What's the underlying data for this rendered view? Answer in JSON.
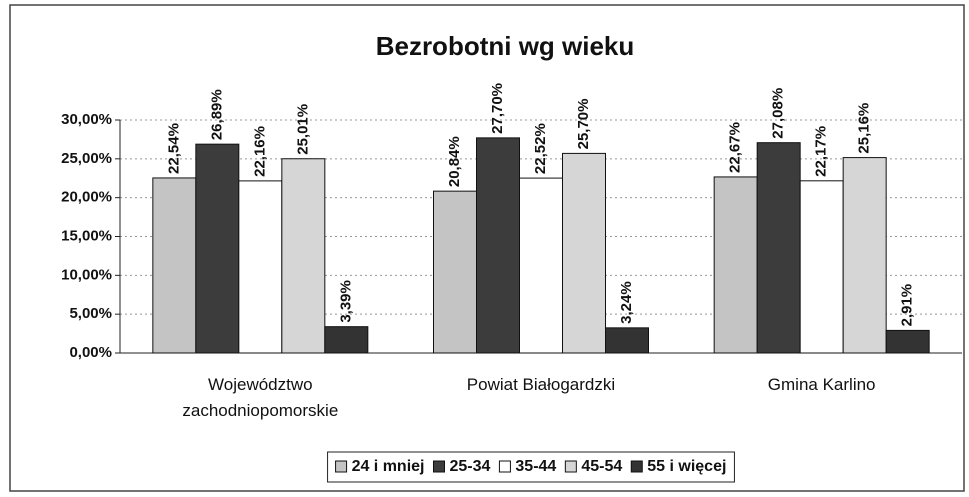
{
  "chart_data": {
    "type": "bar",
    "title": "Bezrobotni wg wieku",
    "categories": [
      "Województwo zachodniopomorskie",
      "Powiat Białogardzki",
      "Gmina Karlino"
    ],
    "series": [
      {
        "name": "24 i mniej",
        "color": "#c4c4c4",
        "values": [
          22.54,
          20.84,
          22.67
        ],
        "value_labels": [
          "22,54%",
          "20,84%",
          "22,67%"
        ]
      },
      {
        "name": "25-34",
        "color": "#3c3c3c",
        "values": [
          26.89,
          27.7,
          27.08
        ],
        "value_labels": [
          "26,89%",
          "27,70%",
          "27,08%"
        ]
      },
      {
        "name": "35-44",
        "color": "#ffffff",
        "values": [
          22.16,
          22.52,
          22.17
        ],
        "value_labels": [
          "22,16%",
          "22,52%",
          "22,17%"
        ]
      },
      {
        "name": "45-54",
        "color": "#d6d6d6",
        "values": [
          25.01,
          25.7,
          25.16
        ],
        "value_labels": [
          "25,01%",
          "25,70%",
          "25,16%"
        ]
      },
      {
        "name": "55 i więcej",
        "color": "#333333",
        "values": [
          3.39,
          3.24,
          2.91
        ],
        "value_labels": [
          "3,39%",
          "3,24%",
          "2,91%"
        ]
      }
    ],
    "ylim": [
      0,
      30
    ],
    "yticks": [
      {
        "value": 0,
        "label": "0,00%"
      },
      {
        "value": 5,
        "label": "5,00%"
      },
      {
        "value": 10,
        "label": "10,00%"
      },
      {
        "value": 15,
        "label": "15,00%"
      },
      {
        "value": 20,
        "label": "20,00%"
      },
      {
        "value": 25,
        "label": "25,00%"
      },
      {
        "value": 30,
        "label": "30,00%"
      }
    ],
    "grid": true,
    "legend": "bottom"
  }
}
